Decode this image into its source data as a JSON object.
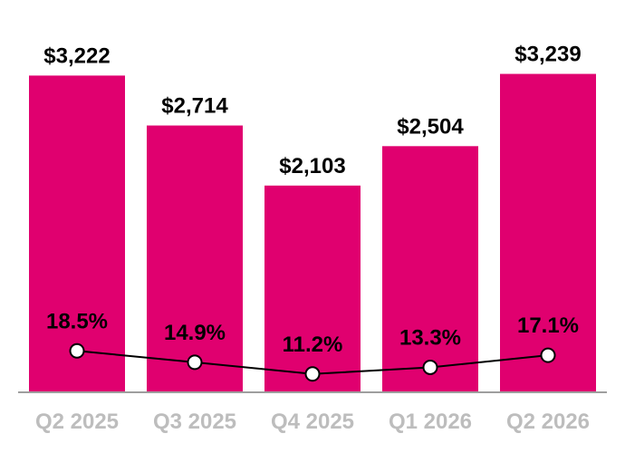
{
  "chart_data": {
    "type": "bar",
    "categories": [
      "Q2 2025",
      "Q3 2025",
      "Q4 2025",
      "Q1 2026",
      "Q2 2026"
    ],
    "series": [
      {
        "type": "bar",
        "values": [
          3222,
          2714,
          2103,
          2504,
          3239
        ],
        "labels": [
          "$3,222",
          "$2,714",
          "$2,103",
          "$2,504",
          "$3,239"
        ],
        "color": "#e0006f"
      },
      {
        "type": "line",
        "values": [
          18.5,
          14.9,
          11.2,
          13.3,
          17.1
        ],
        "labels": [
          "18.5%",
          "14.9%",
          "11.2%",
          "13.3%",
          "17.1%"
        ],
        "color": "#000000"
      }
    ],
    "title": "",
    "xlabel": "",
    "ylabel": "",
    "ylim": [
      0,
      3500
    ],
    "grid": false,
    "legend": "none"
  }
}
